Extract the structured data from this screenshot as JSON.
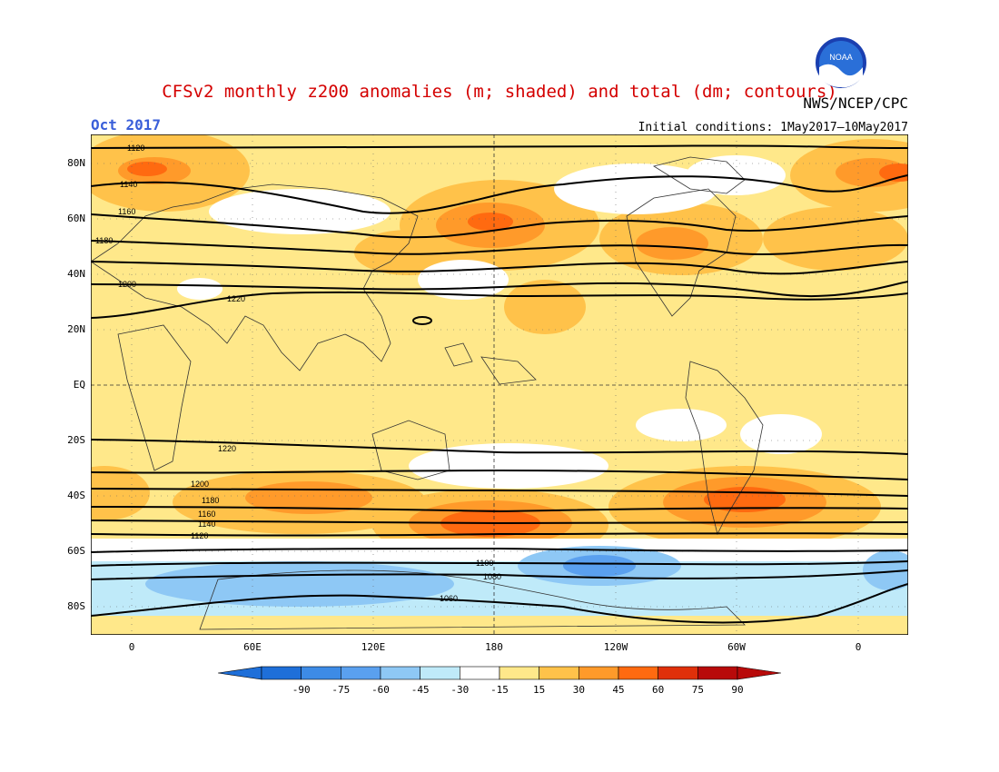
{
  "header": {
    "title": "CFSv2 monthly z200 anomalies (m; shaded) and total (dm; contours)",
    "agency": "NWS/NCEP/CPC",
    "period": "Oct 2017",
    "initial_conditions": "Initial conditions: 1May2017–10May2017"
  },
  "logo": {
    "text": "NOAA",
    "icon": "noaa-logo-icon"
  },
  "axes": {
    "lat_labels": [
      "80N",
      "60N",
      "40N",
      "20N",
      "EQ",
      "20S",
      "40S",
      "60S",
      "80S"
    ],
    "lon_labels": [
      "0",
      "60E",
      "120E",
      "180",
      "120W",
      "60W",
      "0"
    ]
  },
  "colorbar": {
    "ticks": [
      "-90",
      "-75",
      "-60",
      "-45",
      "-30",
      "-15",
      "15",
      "30",
      "45",
      "60",
      "75",
      "90"
    ],
    "colors": [
      "#1e6fd9",
      "#3d8be6",
      "#5aa0ef",
      "#8ec8f5",
      "#bfeaf9",
      "#ffffff",
      "#ffe88a",
      "#ffc24a",
      "#ff9a2a",
      "#ff6a10",
      "#e0300a",
      "#b80a0a"
    ]
  },
  "contour_labels": {
    "nh": [
      "1120",
      "1140",
      "1160",
      "1180",
      "1200",
      "1220"
    ],
    "sh": [
      "1220",
      "1200",
      "1180",
      "1160",
      "1140",
      "1120",
      "1100",
      "1080",
      "1060"
    ]
  }
}
